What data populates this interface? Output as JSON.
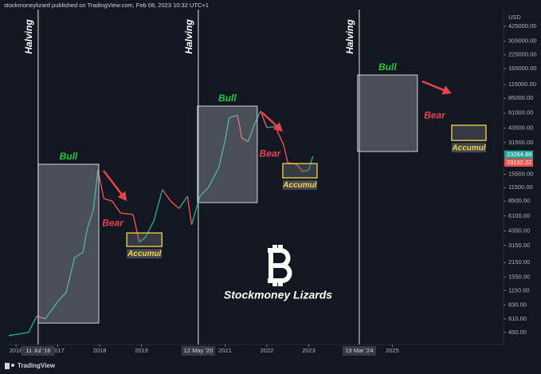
{
  "chart_data": {
    "type": "line",
    "header": "stockmoneylizard published on TradingView.com, Feb 08, 2023 10:32 UTC+1",
    "currency": "USD",
    "footer": "TradingView",
    "watermark": "Stockmoney Lizards",
    "log_scale": true,
    "grid": false,
    "x": [
      2015.85,
      2016.0,
      2016.3,
      2016.5,
      2016.7,
      2017.0,
      2017.2,
      2017.4,
      2017.6,
      2017.7,
      2017.85,
      2017.96,
      2018.1,
      2018.3,
      2018.5,
      2018.8,
      2018.95,
      2019.1,
      2019.3,
      2019.5,
      2019.7,
      2019.9,
      2020.1,
      2020.2,
      2020.4,
      2020.6,
      2020.85,
      2021.0,
      2021.1,
      2021.3,
      2021.4,
      2021.55,
      2021.7,
      2021.85,
      2022.0,
      2022.2,
      2022.4,
      2022.5,
      2022.7,
      2022.85,
      2023.0,
      2023.1
    ],
    "values": [
      420,
      430,
      450,
      650,
      610,
      900,
      1100,
      2400,
      2700,
      4500,
      7000,
      17000,
      9000,
      8500,
      6500,
      6300,
      3400,
      3800,
      5500,
      11000,
      8500,
      7200,
      9500,
      5000,
      9500,
      11500,
      18000,
      33000,
      55000,
      58000,
      35000,
      32000,
      47000,
      64000,
      44000,
      45000,
      30000,
      20000,
      19500,
      16500,
      17000,
      23200
    ],
    "up_color": "#26a69a",
    "down_color": "#ef5350",
    "xlim": [
      2015.77,
      2027.66
    ],
    "xticks": [
      2016,
      2017,
      2018,
      2019,
      2021,
      2022,
      2023,
      2025
    ],
    "ylim": [
      356,
      618000
    ],
    "yticks": [
      {
        "value": 425000,
        "label": "425000.00"
      },
      {
        "value": 305000,
        "label": "305000.00"
      },
      {
        "value": 225000,
        "label": "225000.00"
      },
      {
        "value": 165000,
        "label": "165000.00"
      },
      {
        "value": 115000,
        "label": "115000.00"
      },
      {
        "value": 85000,
        "label": "85000.00"
      },
      {
        "value": 61000,
        "label": "61000.00"
      },
      {
        "value": 43500,
        "label": "43500.00"
      },
      {
        "value": 31500,
        "label": "31500.00"
      },
      {
        "value": 15500,
        "label": "15500.00"
      },
      {
        "value": 11500,
        "label": "11500.00"
      },
      {
        "value": 8500,
        "label": "8500.00"
      },
      {
        "value": 6100,
        "label": "6100.00"
      },
      {
        "value": 4350,
        "label": "4350.00"
      },
      {
        "value": 3150,
        "label": "3150.00"
      },
      {
        "value": 2150,
        "label": "2150.00"
      },
      {
        "value": 1550,
        "label": "1550.00"
      },
      {
        "value": 1150,
        "label": "1150.00"
      },
      {
        "value": 830,
        "label": "830.00"
      },
      {
        "value": 610,
        "label": "610.00"
      },
      {
        "value": 450,
        "label": "450.00"
      }
    ],
    "price_labels": [
      {
        "value": 23264.89,
        "color": "#26a69a"
      },
      {
        "value": 23192.22,
        "color": "#ef5350"
      }
    ],
    "halving_text": "Halving",
    "halvings": [
      {
        "x": 2016.53,
        "label": "11 Jul '16"
      },
      {
        "x": 2020.36,
        "label": "12 May '20"
      },
      {
        "x": 2024.21,
        "label": "19 Mar '24"
      }
    ],
    "cycles": [
      {
        "bull": {
          "label": "Bull",
          "x": [
            2016.53,
            2017.98
          ],
          "y": [
            555,
            19400
          ]
        },
        "bear": "Bear",
        "accum": {
          "label": "Accumul",
          "x": [
            2018.65,
            2019.49
          ],
          "y": [
            3080,
            4170
          ]
        }
      },
      {
        "bull": {
          "label": "Bull",
          "x": [
            2020.34,
            2021.77
          ],
          "y": [
            8220,
            71300
          ]
        },
        "bear": "Bear",
        "accum": {
          "label": "Accumul",
          "x": [
            2022.38,
            2023.2
          ],
          "y": [
            14300,
            19700
          ]
        }
      },
      {
        "bull": {
          "label": "Bull",
          "x": [
            2024.17,
            2025.6
          ],
          "y": [
            25800,
            143000
          ]
        },
        "bear": "Bear",
        "accum": {
          "label": "Accumul",
          "x": [
            2026.42,
            2027.24
          ],
          "y": [
            33000,
            46400
          ]
        }
      }
    ],
    "bull_color": "#22c93a",
    "bear_color": "#e8424f",
    "accum_color": "#f5d742"
  }
}
